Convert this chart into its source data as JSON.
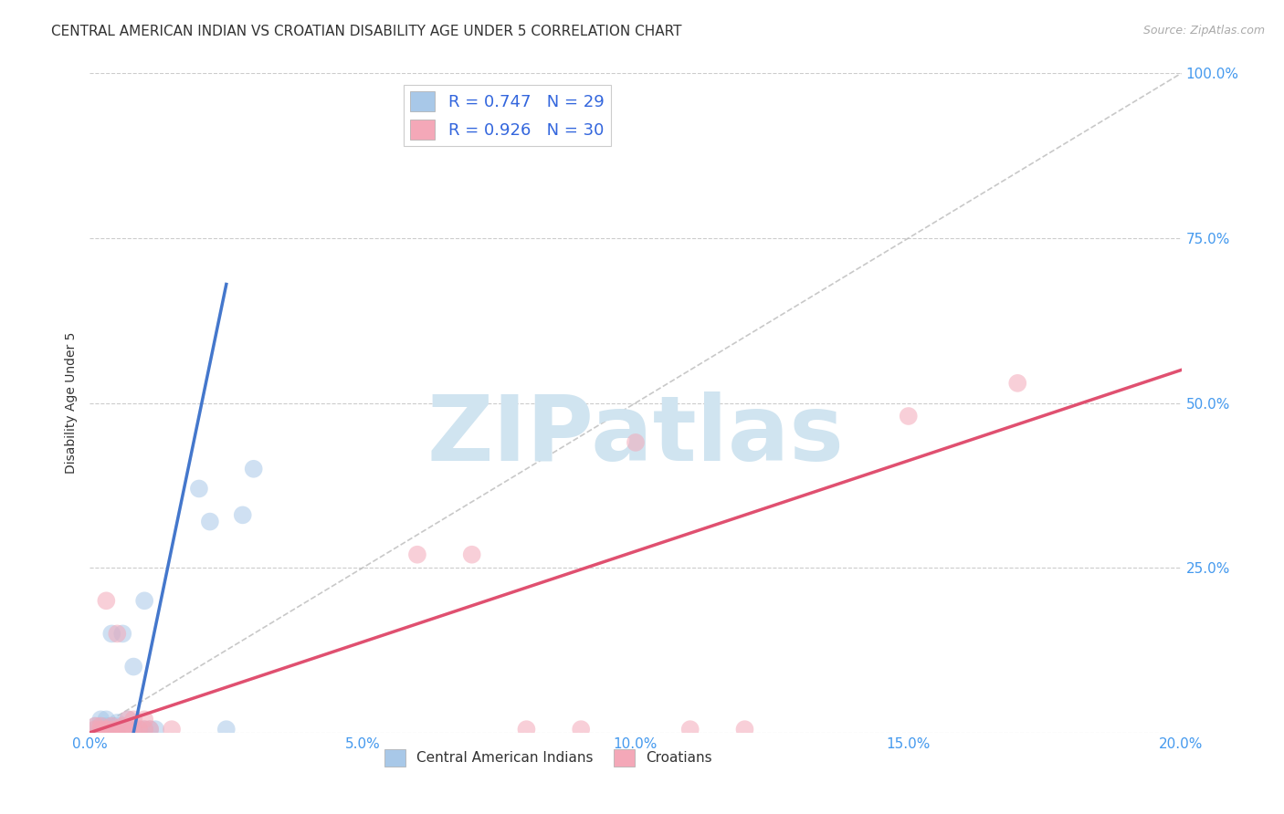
{
  "title": "CENTRAL AMERICAN INDIAN VS CROATIAN DISABILITY AGE UNDER 5 CORRELATION CHART",
  "source": "Source: ZipAtlas.com",
  "ylabel": "Disability Age Under 5",
  "xlim": [
    0.0,
    0.2
  ],
  "ylim": [
    0.0,
    1.0
  ],
  "xticks": [
    0.0,
    0.05,
    0.1,
    0.15,
    0.2
  ],
  "yticks": [
    0.0,
    0.25,
    0.5,
    0.75,
    1.0
  ],
  "xtick_labels": [
    "0.0%",
    "5.0%",
    "10.0%",
    "15.0%",
    "20.0%"
  ],
  "ytick_labels": [
    "",
    "25.0%",
    "50.0%",
    "75.0%",
    "100.0%"
  ],
  "blue_scatter_x": [
    0.001,
    0.001,
    0.002,
    0.002,
    0.002,
    0.003,
    0.003,
    0.003,
    0.004,
    0.004,
    0.004,
    0.005,
    0.005,
    0.005,
    0.006,
    0.006,
    0.007,
    0.007,
    0.008,
    0.009,
    0.01,
    0.01,
    0.011,
    0.012,
    0.02,
    0.022,
    0.025,
    0.028,
    0.03
  ],
  "blue_scatter_y": [
    0.005,
    0.01,
    0.005,
    0.01,
    0.02,
    0.005,
    0.01,
    0.02,
    0.005,
    0.01,
    0.15,
    0.005,
    0.01,
    0.015,
    0.005,
    0.15,
    0.005,
    0.02,
    0.1,
    0.005,
    0.005,
    0.2,
    0.005,
    0.005,
    0.37,
    0.32,
    0.005,
    0.33,
    0.4
  ],
  "pink_scatter_x": [
    0.001,
    0.001,
    0.002,
    0.002,
    0.003,
    0.003,
    0.004,
    0.004,
    0.005,
    0.005,
    0.006,
    0.006,
    0.007,
    0.007,
    0.008,
    0.008,
    0.009,
    0.01,
    0.01,
    0.011,
    0.015,
    0.06,
    0.07,
    0.08,
    0.09,
    0.1,
    0.11,
    0.12,
    0.15,
    0.17
  ],
  "pink_scatter_y": [
    0.005,
    0.01,
    0.005,
    0.01,
    0.005,
    0.2,
    0.005,
    0.01,
    0.005,
    0.15,
    0.005,
    0.01,
    0.005,
    0.02,
    0.005,
    0.02,
    0.005,
    0.005,
    0.02,
    0.005,
    0.005,
    0.27,
    0.27,
    0.005,
    0.005,
    0.44,
    0.005,
    0.005,
    0.48,
    0.53
  ],
  "blue_line_x": [
    0.008,
    0.025
  ],
  "blue_line_y": [
    0.0,
    0.68
  ],
  "pink_line_x": [
    0.0,
    0.2
  ],
  "pink_line_y": [
    0.0,
    0.55
  ],
  "diagonal_line_x": [
    0.0,
    0.2
  ],
  "diagonal_line_y": [
    0.0,
    1.0
  ],
  "blue_color": "#a8c8e8",
  "blue_line_color": "#4477cc",
  "pink_color": "#f4a8b8",
  "pink_line_color": "#e05070",
  "diagonal_color": "#bbbbbb",
  "legend_r1": "R = 0.747",
  "legend_n1": "N = 29",
  "legend_r2": "R = 0.926",
  "legend_n2": "N = 30",
  "legend_label1": "Central American Indians",
  "legend_label2": "Croatians",
  "title_fontsize": 11,
  "axis_label_fontsize": 10,
  "tick_fontsize": 11,
  "source_fontsize": 9,
  "background_color": "#ffffff",
  "grid_color": "#cccccc",
  "watermark_text": "ZIPatlas",
  "watermark_color": "#d0e4f0",
  "watermark_fontsize": 72
}
